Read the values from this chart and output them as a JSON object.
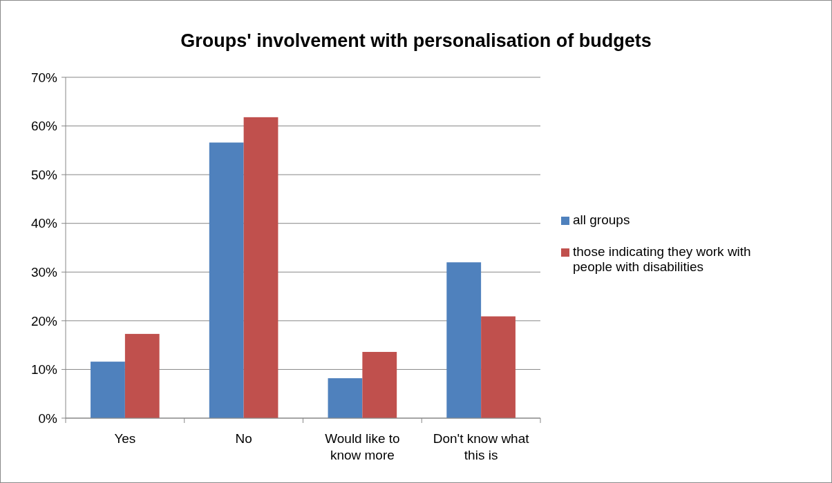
{
  "chart_data": {
    "type": "bar",
    "title": "Groups' involvement with personalisation of budgets",
    "categories": [
      "Yes",
      "No",
      "Would like to know more",
      "Don't know what this is"
    ],
    "series": [
      {
        "name": "all groups",
        "color": "#4f81bd",
        "values": [
          11.6,
          56.6,
          8.2,
          32.0
        ]
      },
      {
        "name": "those indicating they work with people with disabilities",
        "color": "#c0504d",
        "values": [
          17.3,
          61.8,
          13.6,
          20.9
        ]
      }
    ],
    "ylim": [
      0,
      70
    ],
    "yticks": [
      {
        "value": 0,
        "label": "0%"
      },
      {
        "value": 10,
        "label": "10%"
      },
      {
        "value": 20,
        "label": "20%"
      },
      {
        "value": 30,
        "label": "30%"
      },
      {
        "value": 40,
        "label": "40%"
      },
      {
        "value": 50,
        "label": "50%"
      },
      {
        "value": 60,
        "label": "60%"
      },
      {
        "value": 70,
        "label": "70%"
      }
    ],
    "grid": "y",
    "legend": "right"
  }
}
